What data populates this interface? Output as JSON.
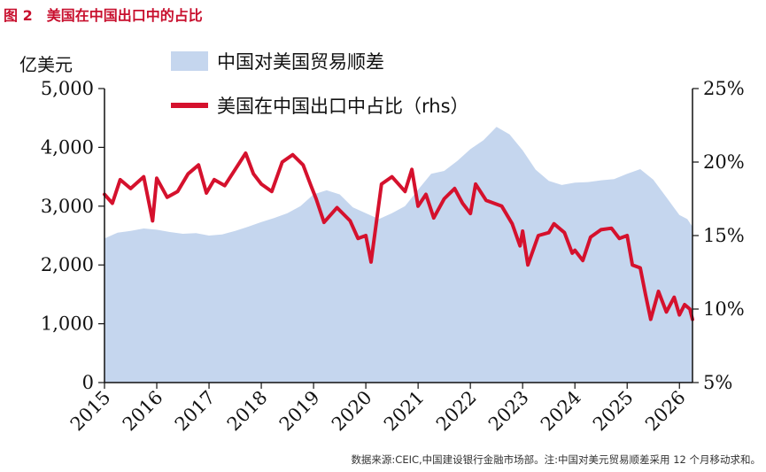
{
  "figure_title": "图 2　美国在中国出口中的占比",
  "source_note": "数据来源:CEIC,中国建设银行金融市场部。注:中国对美元贸易顺差采用 12 个月移动求和。",
  "colors": {
    "area": "#c5d6ee",
    "line": "#d5112d",
    "axis": "#111111"
  },
  "chart_data": {
    "type": "line",
    "title": "",
    "y_left_unit": "亿美元",
    "y_left_ticks": [
      "5,000",
      "4,000",
      "3,000",
      "2,000",
      "1,000",
      "0"
    ],
    "y_left_range": [
      0,
      5000
    ],
    "y_right_ticks": [
      "25%",
      "20%",
      "15%",
      "10%",
      "5%"
    ],
    "y_right_range": [
      5,
      25
    ],
    "x_ticks": [
      "2015",
      "2016",
      "2017",
      "2018",
      "2019",
      "2020",
      "2021",
      "2022",
      "2023",
      "2024",
      "2025",
      "2026"
    ],
    "x_range": [
      2015.0,
      2026.25
    ],
    "legend": "top-left",
    "grid": false,
    "series": [
      {
        "name": "中国对美国贸易顺差",
        "type": "area",
        "axis": "left",
        "points": [
          [
            2015.0,
            2450
          ],
          [
            2015.25,
            2550
          ],
          [
            2015.5,
            2580
          ],
          [
            2015.75,
            2620
          ],
          [
            2016.0,
            2600
          ],
          [
            2016.25,
            2560
          ],
          [
            2016.5,
            2530
          ],
          [
            2016.75,
            2540
          ],
          [
            2017.0,
            2500
          ],
          [
            2017.25,
            2520
          ],
          [
            2017.5,
            2580
          ],
          [
            2017.75,
            2650
          ],
          [
            2018.0,
            2730
          ],
          [
            2018.25,
            2800
          ],
          [
            2018.5,
            2880
          ],
          [
            2018.75,
            3000
          ],
          [
            2019.0,
            3200
          ],
          [
            2019.25,
            3270
          ],
          [
            2019.5,
            3200
          ],
          [
            2019.75,
            2980
          ],
          [
            2020.0,
            2880
          ],
          [
            2020.25,
            2780
          ],
          [
            2020.5,
            2880
          ],
          [
            2020.75,
            3000
          ],
          [
            2021.0,
            3280
          ],
          [
            2021.25,
            3550
          ],
          [
            2021.5,
            3600
          ],
          [
            2021.75,
            3770
          ],
          [
            2022.0,
            3970
          ],
          [
            2022.25,
            4120
          ],
          [
            2022.5,
            4350
          ],
          [
            2022.75,
            4220
          ],
          [
            2023.0,
            3950
          ],
          [
            2023.25,
            3620
          ],
          [
            2023.5,
            3430
          ],
          [
            2023.75,
            3360
          ],
          [
            2024.0,
            3400
          ],
          [
            2024.25,
            3410
          ],
          [
            2024.5,
            3440
          ],
          [
            2024.75,
            3460
          ],
          [
            2025.0,
            3550
          ],
          [
            2025.25,
            3630
          ],
          [
            2025.5,
            3450
          ],
          [
            2025.75,
            3150
          ],
          [
            2026.0,
            2850
          ],
          [
            2026.15,
            2780
          ],
          [
            2026.25,
            2650
          ]
        ]
      },
      {
        "name": "美国在中国出口中占比（rhs）",
        "type": "line",
        "axis": "right",
        "points": [
          [
            2015.0,
            17.8
          ],
          [
            2015.15,
            17.2
          ],
          [
            2015.3,
            18.8
          ],
          [
            2015.5,
            18.2
          ],
          [
            2015.75,
            19.0
          ],
          [
            2015.92,
            16.0
          ],
          [
            2016.0,
            18.9
          ],
          [
            2016.2,
            17.6
          ],
          [
            2016.4,
            18.0
          ],
          [
            2016.6,
            19.2
          ],
          [
            2016.8,
            19.8
          ],
          [
            2016.95,
            17.9
          ],
          [
            2017.1,
            18.8
          ],
          [
            2017.3,
            18.4
          ],
          [
            2017.5,
            19.5
          ],
          [
            2017.7,
            20.6
          ],
          [
            2017.85,
            19.2
          ],
          [
            2018.0,
            18.5
          ],
          [
            2018.2,
            18.0
          ],
          [
            2018.4,
            20.0
          ],
          [
            2018.6,
            20.5
          ],
          [
            2018.8,
            19.8
          ],
          [
            2018.95,
            18.4
          ],
          [
            2019.05,
            17.5
          ],
          [
            2019.2,
            15.9
          ],
          [
            2019.45,
            16.9
          ],
          [
            2019.7,
            16.0
          ],
          [
            2019.85,
            14.8
          ],
          [
            2020.0,
            15.0
          ],
          [
            2020.1,
            13.2
          ],
          [
            2020.3,
            18.5
          ],
          [
            2020.5,
            19.0
          ],
          [
            2020.75,
            18.0
          ],
          [
            2020.88,
            19.5
          ],
          [
            2021.0,
            17.0
          ],
          [
            2021.15,
            17.8
          ],
          [
            2021.3,
            16.2
          ],
          [
            2021.5,
            17.5
          ],
          [
            2021.7,
            18.2
          ],
          [
            2021.85,
            17.2
          ],
          [
            2022.0,
            16.5
          ],
          [
            2022.1,
            18.5
          ],
          [
            2022.3,
            17.4
          ],
          [
            2022.6,
            17.0
          ],
          [
            2022.8,
            15.8
          ],
          [
            2022.95,
            14.3
          ],
          [
            2023.0,
            15.3
          ],
          [
            2023.1,
            13.0
          ],
          [
            2023.3,
            15.0
          ],
          [
            2023.5,
            15.2
          ],
          [
            2023.6,
            15.8
          ],
          [
            2023.8,
            15.2
          ],
          [
            2023.95,
            13.8
          ],
          [
            2024.0,
            14.0
          ],
          [
            2024.15,
            13.3
          ],
          [
            2024.3,
            14.9
          ],
          [
            2024.5,
            15.4
          ],
          [
            2024.7,
            15.5
          ],
          [
            2024.85,
            14.8
          ],
          [
            2025.0,
            15.0
          ],
          [
            2025.1,
            13.0
          ],
          [
            2025.25,
            12.8
          ],
          [
            2025.35,
            11.0
          ],
          [
            2025.45,
            9.3
          ],
          [
            2025.6,
            11.2
          ],
          [
            2025.75,
            9.8
          ],
          [
            2025.9,
            10.8
          ],
          [
            2026.0,
            9.6
          ],
          [
            2026.1,
            10.3
          ],
          [
            2026.2,
            10.0
          ],
          [
            2026.25,
            9.3
          ]
        ]
      }
    ]
  }
}
